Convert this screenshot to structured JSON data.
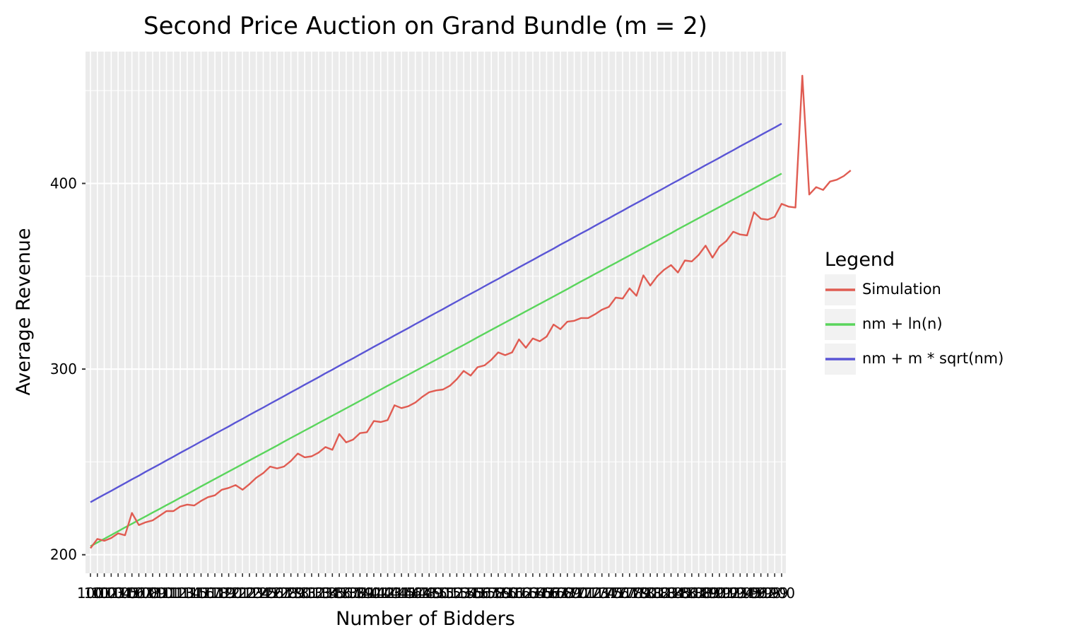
{
  "chart_data": {
    "type": "line",
    "title": "Second Price Auction on Grand Bundle (m = 2)",
    "xlabel": "Number of Bidders",
    "ylabel": "Average Revenue",
    "x_range": [
      100,
      200
    ],
    "ylim": [
      190,
      471
    ],
    "y_ticks": [
      200,
      300,
      400
    ],
    "x_tick_labels_overlapping": "100 ... 200 (one tick per integer, labels overlap)",
    "grid": true,
    "legend": {
      "title": "Legend",
      "placement": "right",
      "entries": [
        "Simulation",
        "nm + ln(n)",
        "nm + m * sqrt(nm)"
      ]
    },
    "colors": {
      "Simulation": "#e05c52",
      "nm + ln(n)": "#5ad55c",
      "nm + m * sqrt(nm)": "#5a55d5",
      "panel": "#ebebeb",
      "grid": "#ffffff"
    },
    "series": [
      {
        "name": "Simulation",
        "x_start": 100,
        "x_step": 1,
        "values": [
          203.5,
          208.5,
          207.5,
          209.0,
          211.5,
          210.5,
          222.5,
          216.0,
          217.5,
          218.5,
          221.0,
          223.5,
          223.5,
          226.0,
          227.0,
          226.5,
          229.0,
          231.0,
          232.0,
          235.0,
          236.0,
          237.5,
          235.0,
          238.0,
          241.5,
          244.0,
          247.5,
          246.5,
          247.5,
          250.5,
          254.5,
          252.5,
          253.0,
          255.0,
          258.0,
          256.5,
          265.0,
          260.5,
          262.0,
          265.5,
          266.0,
          272.0,
          271.5,
          272.5,
          280.5,
          279.0,
          280.0,
          282.0,
          285.0,
          287.5,
          288.5,
          289.0,
          291.0,
          294.5,
          299.0,
          296.5,
          301.0,
          302.0,
          305.0,
          309.0,
          307.5,
          309.0,
          316.0,
          311.5,
          316.5,
          315.0,
          317.5,
          324.0,
          321.5,
          325.5,
          326.0,
          327.5,
          327.5,
          329.5,
          332.0,
          333.5,
          338.5,
          338.0,
          343.5,
          339.5,
          350.5,
          345.0,
          350.0,
          353.5,
          356.0,
          352.0,
          358.5,
          358.0,
          361.5,
          366.5,
          360.0,
          366.0,
          369.0,
          374.0,
          372.5,
          372.0,
          384.5,
          381.0,
          380.5,
          382.0,
          389.0,
          387.5,
          387.0,
          458.0,
          394.0,
          398.0,
          396.5,
          401.0,
          402.0,
          404.0,
          407.0
        ]
      },
      {
        "name": "nm + ln(n)",
        "formula": "2n + ln(n)",
        "x_start": 100,
        "x_step": 1,
        "values": [
          204.6,
          206.6,
          208.6,
          210.6,
          212.6,
          214.7,
          216.7,
          218.7,
          220.7,
          222.7,
          224.7,
          226.7,
          228.7,
          230.7,
          232.7,
          234.7,
          236.8,
          238.8,
          240.8,
          242.8,
          244.8,
          246.8,
          248.8,
          250.8,
          252.8,
          254.8,
          256.8,
          258.8,
          260.9,
          262.9,
          264.9,
          266.9,
          268.9,
          270.9,
          272.9,
          274.9,
          276.9,
          278.9,
          280.9,
          282.9,
          284.9,
          287.0,
          289.0,
          291.0,
          293.0,
          295.0,
          297.0,
          299.0,
          301.0,
          303.0,
          305.0,
          307.0,
          309.0,
          311.0,
          313.0,
          315.0,
          317.1,
          319.1,
          321.1,
          323.1,
          325.1,
          327.1,
          329.1,
          331.1,
          333.1,
          335.1,
          337.1,
          339.1,
          341.1,
          343.1,
          345.2,
          347.2,
          349.2,
          351.2,
          353.2,
          355.2,
          357.2,
          359.2,
          361.2,
          363.2,
          365.2,
          367.2,
          369.2,
          371.2,
          373.2,
          375.3,
          377.3,
          379.3,
          381.3,
          383.3,
          385.3,
          387.3,
          389.3,
          391.3,
          393.3,
          395.3,
          397.3,
          399.3,
          401.3,
          403.3,
          405.3
        ]
      },
      {
        "name": "nm + m * sqrt(nm)",
        "formula": "2n + 2*sqrt(2n)",
        "x_start": 100,
        "x_step": 1,
        "values": [
          228.3,
          230.4,
          232.4,
          234.4,
          236.5,
          238.5,
          240.6,
          242.6,
          244.7,
          246.7,
          248.7,
          250.8,
          252.8,
          254.9,
          256.9,
          258.9,
          261.0,
          263.0,
          265.1,
          267.1,
          269.1,
          271.2,
          273.2,
          275.3,
          277.3,
          279.3,
          281.4,
          283.4,
          285.4,
          287.5,
          289.5,
          291.6,
          293.6,
          295.6,
          297.7,
          299.7,
          301.8,
          303.8,
          305.8,
          307.9,
          309.9,
          312.0,
          314.0,
          316.0,
          318.1,
          320.1,
          322.1,
          324.2,
          326.2,
          328.3,
          330.3,
          332.3,
          334.4,
          336.4,
          338.5,
          340.5,
          342.5,
          344.6,
          346.6,
          348.6,
          350.7,
          352.7,
          354.8,
          356.8,
          358.8,
          360.9,
          362.9,
          364.9,
          367.0,
          369.0,
          371.1,
          373.1,
          375.1,
          377.2,
          379.2,
          381.2,
          383.3,
          385.3,
          387.4,
          389.4,
          391.4,
          393.5,
          395.5,
          397.5,
          399.6,
          401.6,
          403.7,
          405.7,
          407.7,
          409.8,
          411.8,
          413.8,
          415.9,
          417.9,
          420.0,
          422.0,
          424.0,
          426.1,
          428.1,
          430.1,
          432.2
        ]
      }
    ]
  }
}
